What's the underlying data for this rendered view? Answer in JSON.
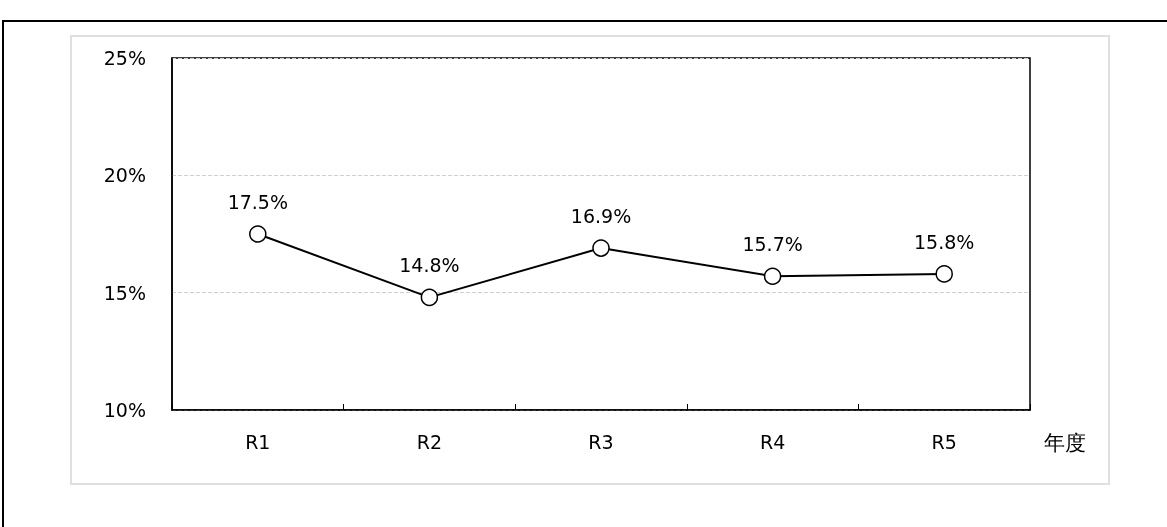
{
  "chart_data": {
    "type": "line",
    "xlabel": "年度",
    "categories": [
      "R1",
      "R2",
      "R3",
      "R4",
      "R5"
    ],
    "series": [
      {
        "color": "#000000",
        "values": [
          17.5,
          14.8,
          16.9,
          15.7,
          15.8
        ],
        "value_labels": [
          "17.5%",
          "14.8%",
          "16.9%",
          "15.7%",
          "15.8%"
        ]
      }
    ],
    "ylim": [
      10,
      25
    ],
    "yticks": [
      {
        "value": 10,
        "label": "10%"
      },
      {
        "value": 15,
        "label": "15%"
      },
      {
        "value": 20,
        "label": "20%"
      },
      {
        "value": 25,
        "label": "25%"
      }
    ],
    "grid": "y",
    "marker": "circle",
    "line_style": "solid"
  }
}
